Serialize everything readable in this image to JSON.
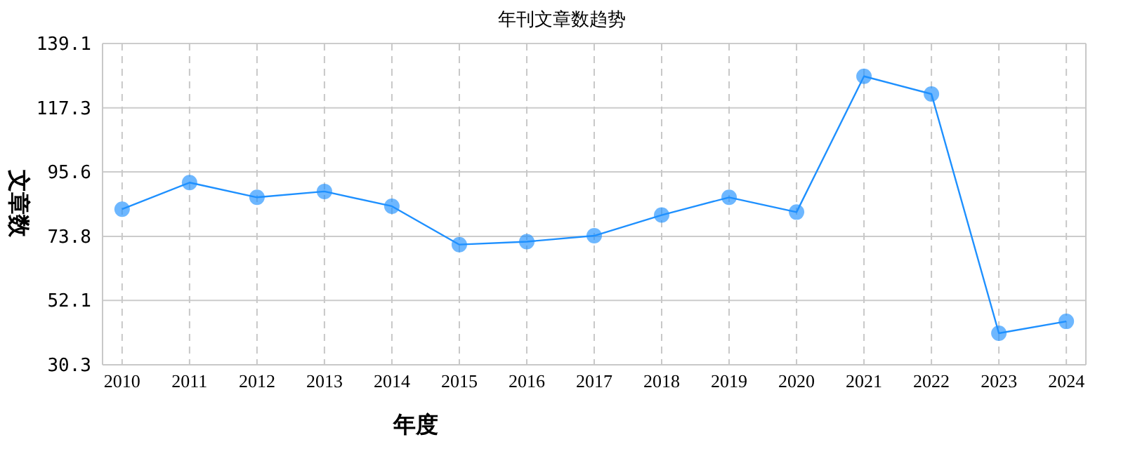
{
  "chart_data": {
    "type": "line",
    "title": "年刊文章数趋势",
    "xlabel": "年度",
    "ylabel": "文章数",
    "categories": [
      "2010",
      "2011",
      "2012",
      "2013",
      "2014",
      "2015",
      "2016",
      "2017",
      "2018",
      "2019",
      "2020",
      "2021",
      "2022",
      "2023",
      "2024"
    ],
    "series": [
      {
        "color": "#1e90ff",
        "values": [
          83,
          92,
          87,
          89,
          84,
          71,
          72,
          74,
          81,
          87,
          82,
          128,
          122,
          41,
          45
        ]
      }
    ],
    "ylim": [
      30.3,
      139.1
    ],
    "yticks": [
      30.3,
      52.1,
      73.8,
      95.6,
      117.3,
      139.1
    ],
    "grid": true,
    "marker": "circle",
    "line_style": "solid"
  }
}
